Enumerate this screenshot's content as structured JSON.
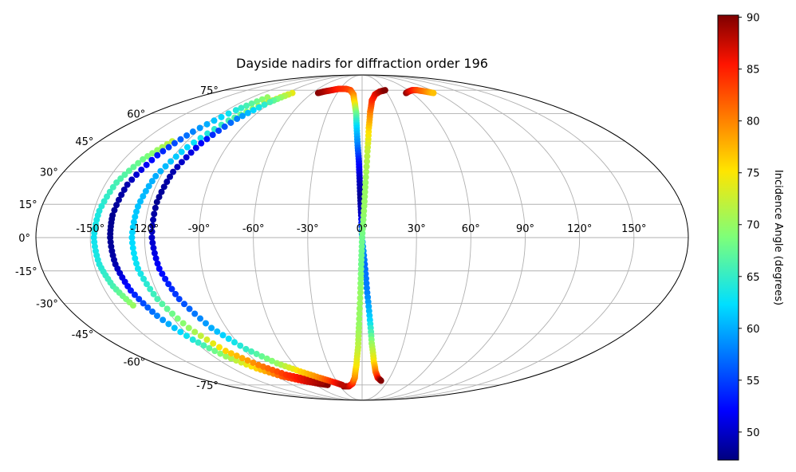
{
  "chart_data": {
    "type": "scatter",
    "projection": "mollweide",
    "title": "Dayside nadirs for diffraction order 196",
    "xlabel": "",
    "ylabel": "",
    "grid": true,
    "lon_ticks": [
      -150,
      -120,
      -90,
      -60,
      -30,
      0,
      30,
      60,
      90,
      120,
      150
    ],
    "lon_tick_labels": [
      "-150°",
      "-120°",
      "-90°",
      "-60°",
      "-30°",
      "0°",
      "30°",
      "60°",
      "90°",
      "120°",
      "150°"
    ],
    "lat_ticks": [
      -75,
      -60,
      -45,
      -30,
      -15,
      0,
      15,
      30,
      45,
      60,
      75
    ],
    "lat_tick_labels": [
      "-75°",
      "-60°",
      "-45°",
      "-30°",
      "-15°",
      "0°",
      "15°",
      "30°",
      "45°",
      "60°",
      "75°"
    ],
    "colorbar": {
      "label": "Incidence Angle (degrees)",
      "colormap": "jet",
      "range": [
        47.3,
        90.2
      ],
      "ticks": [
        50,
        55,
        60,
        65,
        70,
        75,
        80,
        85,
        90
      ],
      "tick_labels": [
        "50",
        "55",
        "60",
        "65",
        "70",
        "75",
        "80",
        "85",
        "90"
      ]
    },
    "series": [
      {
        "points": [
          {
            "lon": -53,
            "lat": 73,
            "inc": 90
          },
          {
            "lon": -48,
            "lat": 74,
            "inc": 89
          },
          {
            "lon": -40,
            "lat": 75,
            "inc": 87
          },
          {
            "lon": -32,
            "lat": 76,
            "inc": 85
          },
          {
            "lon": -22,
            "lat": 76,
            "inc": 84
          },
          {
            "lon": -15,
            "lat": 75,
            "inc": 83
          },
          {
            "lon": -10,
            "lat": 72,
            "inc": 80
          },
          {
            "lon": -7,
            "lat": 66,
            "inc": 75
          },
          {
            "lon": -5,
            "lat": 60,
            "inc": 68
          },
          {
            "lon": -4,
            "lat": 52,
            "inc": 62
          },
          {
            "lon": -3,
            "lat": 43,
            "inc": 58
          },
          {
            "lon": -2,
            "lat": 35,
            "inc": 53
          },
          {
            "lon": -1.5,
            "lat": 27,
            "inc": 50
          },
          {
            "lon": -1,
            "lat": 18,
            "inc": 48
          },
          {
            "lon": -0.5,
            "lat": 10,
            "inc": 50
          },
          {
            "lon": 0,
            "lat": 0,
            "inc": 60
          },
          {
            "lon": 1.5,
            "lat": -12,
            "inc": 57
          },
          {
            "lon": 3,
            "lat": -25,
            "inc": 58
          },
          {
            "lon": 5,
            "lat": -38,
            "inc": 62
          },
          {
            "lon": 7,
            "lat": -50,
            "inc": 70
          },
          {
            "lon": 10,
            "lat": -60,
            "inc": 75
          },
          {
            "lon": 13,
            "lat": -66,
            "inc": 80
          },
          {
            "lon": 17,
            "lat": -70,
            "inc": 85
          },
          {
            "lon": 22,
            "lat": -72,
            "inc": 90
          }
        ]
      },
      {
        "points": [
          {
            "lon": -25,
            "lat": -76,
            "inc": 90
          },
          {
            "lon": -18,
            "lat": -76,
            "inc": 88
          },
          {
            "lon": -12,
            "lat": -74,
            "inc": 85
          },
          {
            "lon": -8,
            "lat": -70,
            "inc": 80
          },
          {
            "lon": -5,
            "lat": -62,
            "inc": 75
          },
          {
            "lon": -3,
            "lat": -52,
            "inc": 72
          },
          {
            "lon": -2,
            "lat": -40,
            "inc": 70
          },
          {
            "lon": -1,
            "lat": -25,
            "inc": 70
          },
          {
            "lon": -0.5,
            "lat": -12,
            "inc": 68
          },
          {
            "lon": 0,
            "lat": 0,
            "inc": 68
          },
          {
            "lon": 1,
            "lat": 12,
            "inc": 70
          },
          {
            "lon": 2,
            "lat": 25,
            "inc": 70
          },
          {
            "lon": 3.5,
            "lat": 40,
            "inc": 72
          },
          {
            "lon": 5,
            "lat": 52,
            "inc": 76
          },
          {
            "lon": 7,
            "lat": 61,
            "inc": 80
          },
          {
            "lon": 10,
            "lat": 68,
            "inc": 84
          },
          {
            "lon": 15,
            "lat": 72,
            "inc": 86
          },
          {
            "lon": 22,
            "lat": 74,
            "inc": 88
          },
          {
            "lon": 30,
            "lat": 75,
            "inc": 90
          }
        ]
      },
      {
        "points": [
          {
            "lon": 53,
            "lat": 73,
            "inc": 90
          },
          {
            "lon": 58,
            "lat": 74,
            "inc": 88
          },
          {
            "lon": 65,
            "lat": 75,
            "inc": 86
          },
          {
            "lon": 72,
            "lat": 75,
            "inc": 83
          },
          {
            "lon": 80,
            "lat": 74,
            "inc": 80
          },
          {
            "lon": 86,
            "lat": 73,
            "inc": 77
          }
        ]
      },
      {
        "points": [
          {
            "lon": -130,
            "lat": 45,
            "inc": 72
          },
          {
            "lon": -138,
            "lat": 36,
            "inc": 68
          },
          {
            "lon": -144,
            "lat": 25,
            "inc": 66
          },
          {
            "lon": -147,
            "lat": 12,
            "inc": 64
          },
          {
            "lon": -148,
            "lat": 0,
            "inc": 63
          },
          {
            "lon": -147,
            "lat": -12,
            "inc": 64
          },
          {
            "lon": -144,
            "lat": -22,
            "inc": 66
          },
          {
            "lon": -139,
            "lat": -31,
            "inc": 70
          }
        ]
      },
      {
        "points": [
          {
            "lon": -103,
            "lat": 70,
            "inc": 70
          },
          {
            "lon": -112,
            "lat": 62,
            "inc": 64
          },
          {
            "lon": -123,
            "lat": 50,
            "inc": 58
          },
          {
            "lon": -131,
            "lat": 38,
            "inc": 53
          },
          {
            "lon": -137,
            "lat": 24,
            "inc": 49
          },
          {
            "lon": -139,
            "lat": 10,
            "inc": 48
          },
          {
            "lon": -139,
            "lat": 0,
            "inc": 48
          },
          {
            "lon": -138,
            "lat": -12,
            "inc": 49
          },
          {
            "lon": -135,
            "lat": -24,
            "inc": 53
          },
          {
            "lon": -129,
            "lat": -36,
            "inc": 58
          },
          {
            "lon": -120,
            "lat": -48,
            "inc": 64
          },
          {
            "lon": -110,
            "lat": -57,
            "inc": 70
          },
          {
            "lon": -98,
            "lat": -64,
            "inc": 76
          },
          {
            "lon": -85,
            "lat": -69,
            "inc": 82
          },
          {
            "lon": -70,
            "lat": -72,
            "inc": 86
          },
          {
            "lon": -55,
            "lat": -74,
            "inc": 89
          },
          {
            "lon": -45,
            "lat": -75,
            "inc": 90
          }
        ]
      },
      {
        "points": [
          {
            "lon": -86,
            "lat": 72,
            "inc": 76
          },
          {
            "lon": -95,
            "lat": 66,
            "inc": 72
          },
          {
            "lon": -106,
            "lat": 56,
            "inc": 66
          },
          {
            "lon": -116,
            "lat": 42,
            "inc": 62
          },
          {
            "lon": -123,
            "lat": 28,
            "inc": 60
          },
          {
            "lon": -126,
            "lat": 14,
            "inc": 61
          },
          {
            "lon": -127,
            "lat": 0,
            "inc": 62
          },
          {
            "lon": -126,
            "lat": -14,
            "inc": 63
          },
          {
            "lon": -122,
            "lat": -28,
            "inc": 66
          },
          {
            "lon": -115,
            "lat": -42,
            "inc": 70
          },
          {
            "lon": -105,
            "lat": -54,
            "inc": 76
          },
          {
            "lon": -92,
            "lat": -62,
            "inc": 80
          },
          {
            "lon": -78,
            "lat": -68,
            "inc": 84
          },
          {
            "lon": -62,
            "lat": -71,
            "inc": 87
          },
          {
            "lon": -48,
            "lat": -73,
            "inc": 89
          }
        ]
      },
      {
        "points": [
          {
            "lon": -84,
            "lat": 73,
            "inc": 74
          },
          {
            "lon": -92,
            "lat": 67,
            "inc": 66
          },
          {
            "lon": -101,
            "lat": 57,
            "inc": 58
          },
          {
            "lon": -109,
            "lat": 44,
            "inc": 52
          },
          {
            "lon": -114,
            "lat": 30,
            "inc": 49
          },
          {
            "lon": -116,
            "lat": 16,
            "inc": 48
          },
          {
            "lon": -116,
            "lat": 0,
            "inc": 50
          },
          {
            "lon": -114,
            "lat": -14,
            "inc": 52
          },
          {
            "lon": -109,
            "lat": -28,
            "inc": 55
          },
          {
            "lon": -100,
            "lat": -42,
            "inc": 60
          },
          {
            "lon": -88,
            "lat": -53,
            "inc": 65
          },
          {
            "lon": -74,
            "lat": -61,
            "inc": 70
          },
          {
            "lon": -60,
            "lat": -66,
            "inc": 76
          },
          {
            "lon": -46,
            "lat": -70,
            "inc": 80
          },
          {
            "lon": -34,
            "lat": -73,
            "inc": 85
          },
          {
            "lon": -26,
            "lat": -75,
            "inc": 88
          }
        ]
      }
    ]
  }
}
